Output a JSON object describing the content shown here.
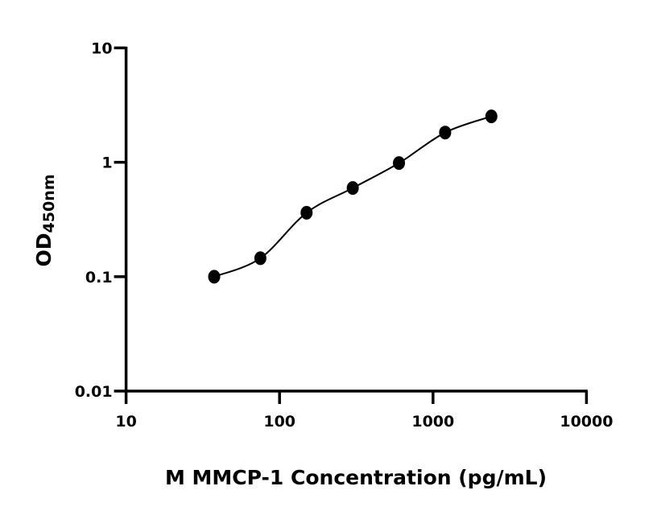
{
  "chart_data": {
    "type": "scatter",
    "title": "",
    "xlabel": "M MMCP-1 Concentration (pg/mL)",
    "ylabel": "OD",
    "ylabel_subscript": "450nm",
    "x_scale": "log",
    "y_scale": "log",
    "xlim": [
      10,
      10000
    ],
    "ylim": [
      0.01,
      10
    ],
    "x_ticks": [
      "10",
      "100",
      "1000",
      "10000"
    ],
    "y_ticks": [
      "0.01",
      "0.1",
      "1",
      "10"
    ],
    "grid": false,
    "fit_curve": true,
    "marker_color": "#000000",
    "series": [
      {
        "x": [
          37.5,
          75,
          150,
          300,
          600,
          1200,
          2400
        ],
        "y": [
          0.1,
          0.145,
          0.362,
          0.596,
          0.984,
          1.82,
          2.52
        ]
      }
    ]
  }
}
